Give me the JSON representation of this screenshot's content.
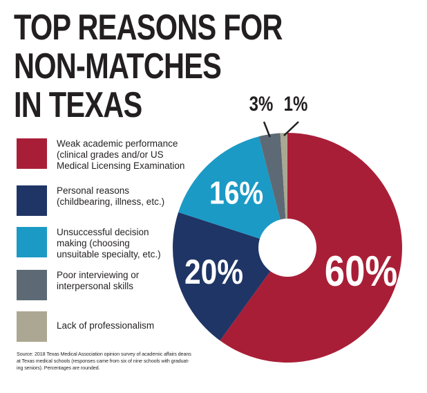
{
  "title_lines": [
    "TOP REASONS FOR",
    "NON-MATCHES",
    "IN TEXAS"
  ],
  "chart_data": {
    "type": "pie",
    "title": "TOP REASONS FOR NON-MATCHES IN TEXAS",
    "categories": [
      "Weak academic performance (clinical grades and/or US Medical Licensing Examination",
      "Personal reasons (childbearing, illness, etc.)",
      "Unsuccessful decision making (choosing unsuitable specialty, etc.)",
      "Poor interviewing or interpersonal skills",
      "Lack of professionalism"
    ],
    "values": [
      60,
      20,
      16,
      3,
      1
    ],
    "labels": [
      "60%",
      "20%",
      "16%",
      "3%",
      "1%"
    ],
    "colors": [
      "#a91e37",
      "#1f3566",
      "#1b9ac6",
      "#5d6a75",
      "#aca792"
    ],
    "legend_position": "left"
  },
  "legend": [
    {
      "lines": [
        "Weak academic performance",
        "(clinical grades and/or US",
        "Medical Licensing Examination"
      ],
      "color": "#a91e37"
    },
    {
      "lines": [
        "Personal reasons",
        "(childbearing, illness, etc.)"
      ],
      "color": "#1f3566"
    },
    {
      "lines": [
        "Unsuccessful decision",
        "making (choosing",
        "unsuitable specialty, etc.)"
      ],
      "color": "#1b9ac6"
    },
    {
      "lines": [
        "Poor interviewing or",
        "interpersonal skills"
      ],
      "color": "#5d6a75"
    },
    {
      "lines": [
        "Lack of professionalism"
      ],
      "color": "#aca792"
    }
  ],
  "source_lines": [
    "Source: 2018 Texas Medical Association opinion survey of academic affairs deans",
    "at Texas medical schools (responses came from six of nine schools with graduat-",
    "ing seniors). Percentages are rounded."
  ]
}
